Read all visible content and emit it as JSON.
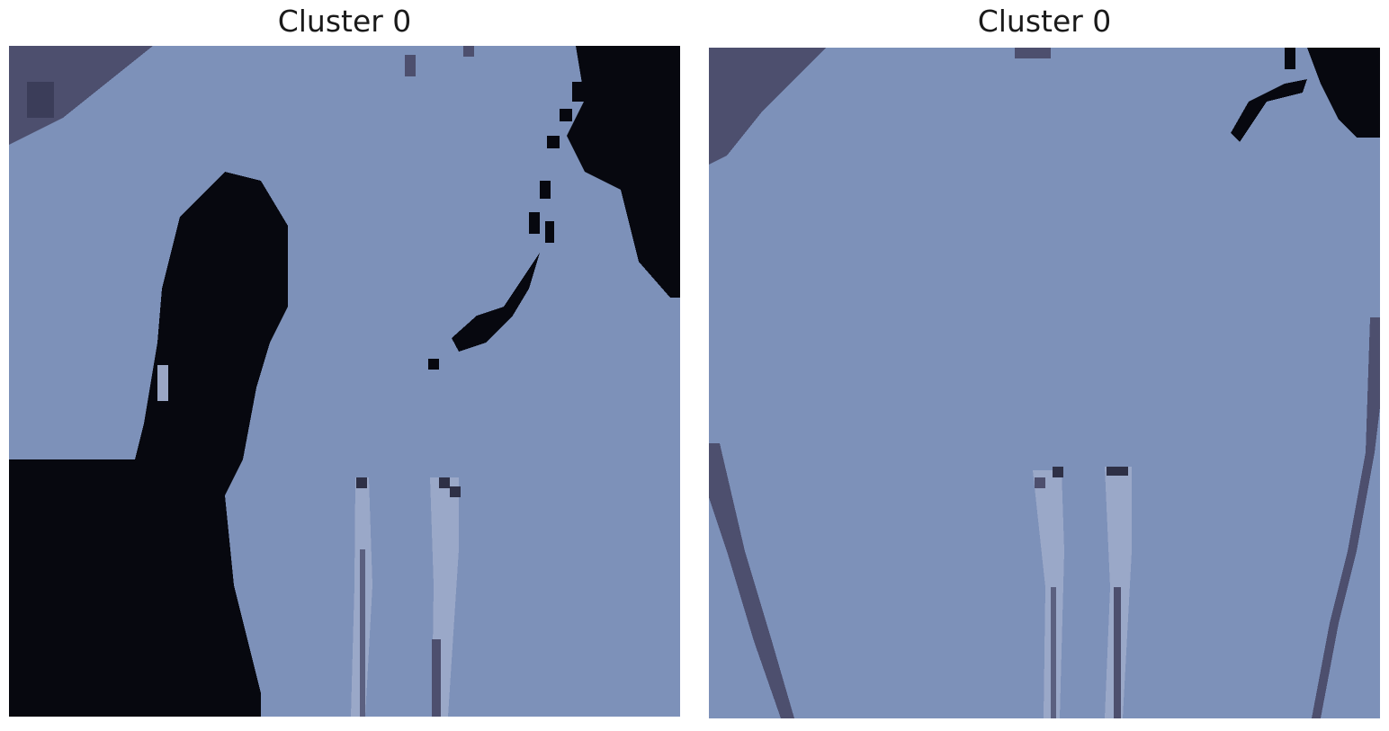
{
  "panels": [
    {
      "title": "Cluster 0",
      "description_colors": {
        "background": "#7d91b9",
        "dark": "#07080f",
        "mid": "#4d4f6e"
      }
    },
    {
      "title": "Cluster 0",
      "description_colors": {
        "background": "#7d91b9",
        "dark": "#07080f",
        "mid": "#4d4f6e"
      }
    }
  ]
}
